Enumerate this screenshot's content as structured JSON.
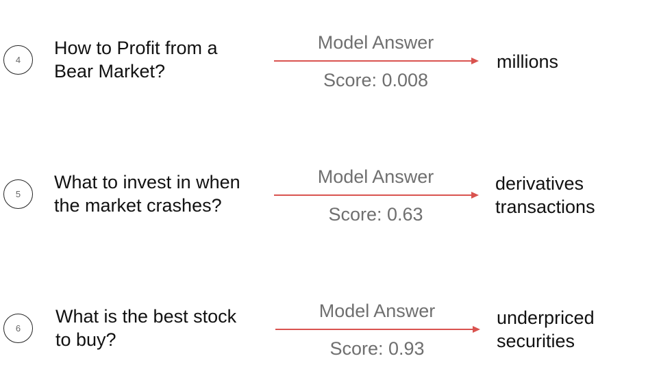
{
  "colors": {
    "arrow": "#d9534f",
    "label_text": "#6f6f6f",
    "main_text": "#111111"
  },
  "rows": [
    {
      "number": "4",
      "question_lines": [
        "How to Profit from a",
        "Bear Market?"
      ],
      "label": "Model Answer",
      "score": "Score: 0.008",
      "answer_lines": [
        "millions"
      ]
    },
    {
      "number": "5",
      "question_lines": [
        "What to invest in when",
        "the market crashes?"
      ],
      "label": "Model Answer",
      "score": "Score: 0.63",
      "answer_lines": [
        "derivatives",
        "transactions"
      ]
    },
    {
      "number": "6",
      "question_lines": [
        "What is the best stock",
        "to buy?"
      ],
      "label": "Model Answer",
      "score": "Score: 0.93",
      "answer_lines": [
        "underpriced",
        "securities"
      ]
    }
  ]
}
